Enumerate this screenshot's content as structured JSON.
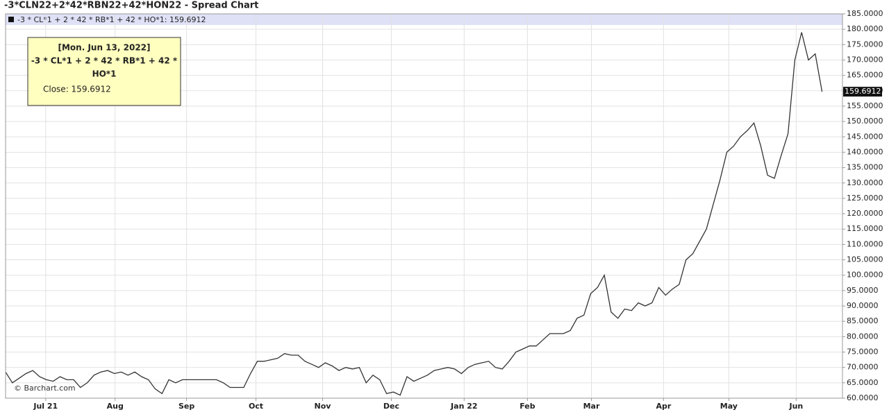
{
  "chart_data": {
    "type": "line",
    "title": "-3*CLN22+2*42*RBN22+42*HON22 - Spread Chart",
    "legend_text": "-3 * CL*1 + 2 * 42 * RB*1 + 42 * HO*1: 159.6912",
    "watermark": "© Barchart.com",
    "tooltip": {
      "date": "[Mon. Jun 13, 2022]",
      "lines": [
        "-3 * CL*1 + 2 * 42 * RB*1 + 42 *",
        "HO*1"
      ],
      "close": "Close: 159.6912"
    },
    "series": [
      {
        "name": "-3 * CL*1 + 2 * 42 * RB*1 + 42 * HO*1",
        "color": "#333333",
        "values": [
          68.5,
          65,
          66.5,
          68,
          69,
          67,
          66,
          65.5,
          67,
          66,
          66,
          63.5,
          65,
          67.5,
          68.5,
          69,
          68,
          68.5,
          67.5,
          68.5,
          67,
          66,
          63,
          61.5,
          66,
          65,
          66,
          66,
          66,
          66,
          66,
          66,
          65,
          63.5,
          63.5,
          63.5,
          68,
          72,
          72,
          72.5,
          73,
          74.5,
          74,
          74,
          72,
          71,
          70,
          71.5,
          70.5,
          69,
          70,
          69.5,
          70,
          65,
          67.5,
          66,
          61.5,
          62,
          61,
          67,
          65.5,
          66.5,
          67.5,
          69,
          69.5,
          70,
          69.5,
          68,
          70,
          71,
          71.5,
          72,
          70,
          69.5,
          72,
          75,
          76,
          77,
          77,
          79,
          81,
          81,
          81,
          82,
          86,
          87,
          94,
          96,
          100,
          88,
          86,
          89,
          88.5,
          91,
          90,
          91,
          96,
          93.5,
          95.5,
          97,
          105,
          107,
          111,
          115,
          123,
          131,
          140,
          142,
          145,
          147,
          149.5,
          142,
          132.5,
          131.5,
          139,
          146,
          170,
          179,
          170,
          172,
          159.6912
        ]
      }
    ],
    "xlim": [
      0,
      123
    ],
    "xticks": [
      {
        "value": 5.9,
        "label": "Jul 21"
      },
      {
        "value": 16.1,
        "label": "Aug"
      },
      {
        "value": 26.6,
        "label": "Sep"
      },
      {
        "value": 36.8,
        "label": "Oct"
      },
      {
        "value": 46.6,
        "label": "Nov"
      },
      {
        "value": 56.7,
        "label": "Dec"
      },
      {
        "value": 67.4,
        "label": "Jan 22"
      },
      {
        "value": 76.7,
        "label": "Feb"
      },
      {
        "value": 86.1,
        "label": "Mar"
      },
      {
        "value": 96.7,
        "label": "Apr"
      },
      {
        "value": 106.3,
        "label": "May"
      },
      {
        "value": 116.2,
        "label": "Jun"
      }
    ],
    "ylim": [
      60,
      185
    ],
    "yticks": [
      {
        "value": 60,
        "label": "60.0000"
      },
      {
        "value": 65,
        "label": "65.0000"
      },
      {
        "value": 70,
        "label": "70.0000"
      },
      {
        "value": 75,
        "label": "75.0000"
      },
      {
        "value": 80,
        "label": "80.0000"
      },
      {
        "value": 85,
        "label": "85.0000"
      },
      {
        "value": 90,
        "label": "90.0000"
      },
      {
        "value": 95,
        "label": "95.0000"
      },
      {
        "value": 100,
        "label": "100.0000"
      },
      {
        "value": 105,
        "label": "105.0000"
      },
      {
        "value": 110,
        "label": "110.0000"
      },
      {
        "value": 115,
        "label": "115.0000"
      },
      {
        "value": 120,
        "label": "120.0000"
      },
      {
        "value": 125,
        "label": "125.0000"
      },
      {
        "value": 130,
        "label": "130.0000"
      },
      {
        "value": 135,
        "label": "135.0000"
      },
      {
        "value": 140,
        "label": "140.0000"
      },
      {
        "value": 145,
        "label": "145.0000"
      },
      {
        "value": 150,
        "label": "150.0000"
      },
      {
        "value": 155,
        "label": "155.0000"
      },
      {
        "value": 160,
        "label": "160.0000"
      },
      {
        "value": 165,
        "label": "165.0000"
      },
      {
        "value": 170,
        "label": "170.0000"
      },
      {
        "value": 175,
        "label": "175.0000"
      },
      {
        "value": 180,
        "label": "180.0000"
      },
      {
        "value": 185,
        "label": "185.0000"
      }
    ],
    "grid": true
  }
}
